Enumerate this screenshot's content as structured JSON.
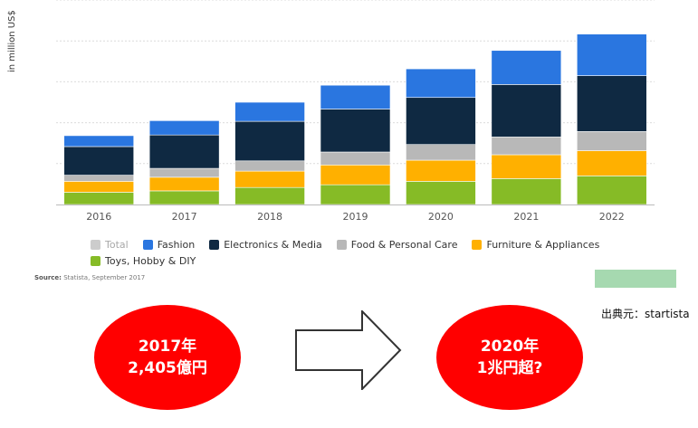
{
  "chart_data": {
    "type": "bar",
    "stacked": true,
    "categories": [
      "2016",
      "2017",
      "2018",
      "2019",
      "2020",
      "2021",
      "2022"
    ],
    "ylabel": "in million US$",
    "grid": true,
    "legend_position": "bottom",
    "series": [
      {
        "name": "Toys, Hobby & DIY",
        "color": "#86bb26",
        "values": [
          9,
          10,
          12.5,
          14.5,
          17,
          19,
          21
        ]
      },
      {
        "name": "Furniture & Appliances",
        "color": "#ffb000",
        "values": [
          8,
          10,
          12,
          14.5,
          15.5,
          17.5,
          18.5
        ]
      },
      {
        "name": "Food & Personal Care",
        "color": "#b8b8b8",
        "values": [
          4.5,
          6.5,
          7.5,
          9.5,
          11.5,
          13,
          14
        ]
      },
      {
        "name": "Electronics & Media",
        "color": "#0f2942",
        "values": [
          21,
          24.5,
          29,
          31.5,
          34.5,
          38.5,
          41
        ]
      },
      {
        "name": "Fashion",
        "color": "#2a76e0",
        "values": [
          8,
          10.5,
          14,
          17.5,
          21,
          25,
          30.5
        ]
      }
    ],
    "legend": [
      {
        "name": "Total",
        "color": "#cccccc",
        "muted": true
      },
      {
        "name": "Fashion",
        "color": "#2a76e0"
      },
      {
        "name": "Electronics & Media",
        "color": "#0f2942"
      },
      {
        "name": "Food & Personal Care",
        "color": "#b8b8b8"
      },
      {
        "name": "Furniture & Appliances",
        "color": "#ffb000"
      },
      {
        "name": "Toys, Hobby & DIY",
        "color": "#86bb26"
      }
    ],
    "ylim": [
      0,
      150
    ],
    "ygrid": [
      30,
      60,
      90,
      120,
      150
    ]
  },
  "source": {
    "label": "Source:",
    "text": "Statista, September 2017"
  },
  "credit": "出典元：startista",
  "bubble_left": {
    "line1": "2017年",
    "line2": "2,405億円"
  },
  "bubble_right": {
    "line1": "2020年",
    "line2": "1兆円超?"
  },
  "colors": {
    "bubble": "#ff0000",
    "green_tab": "#a6d9b0"
  }
}
